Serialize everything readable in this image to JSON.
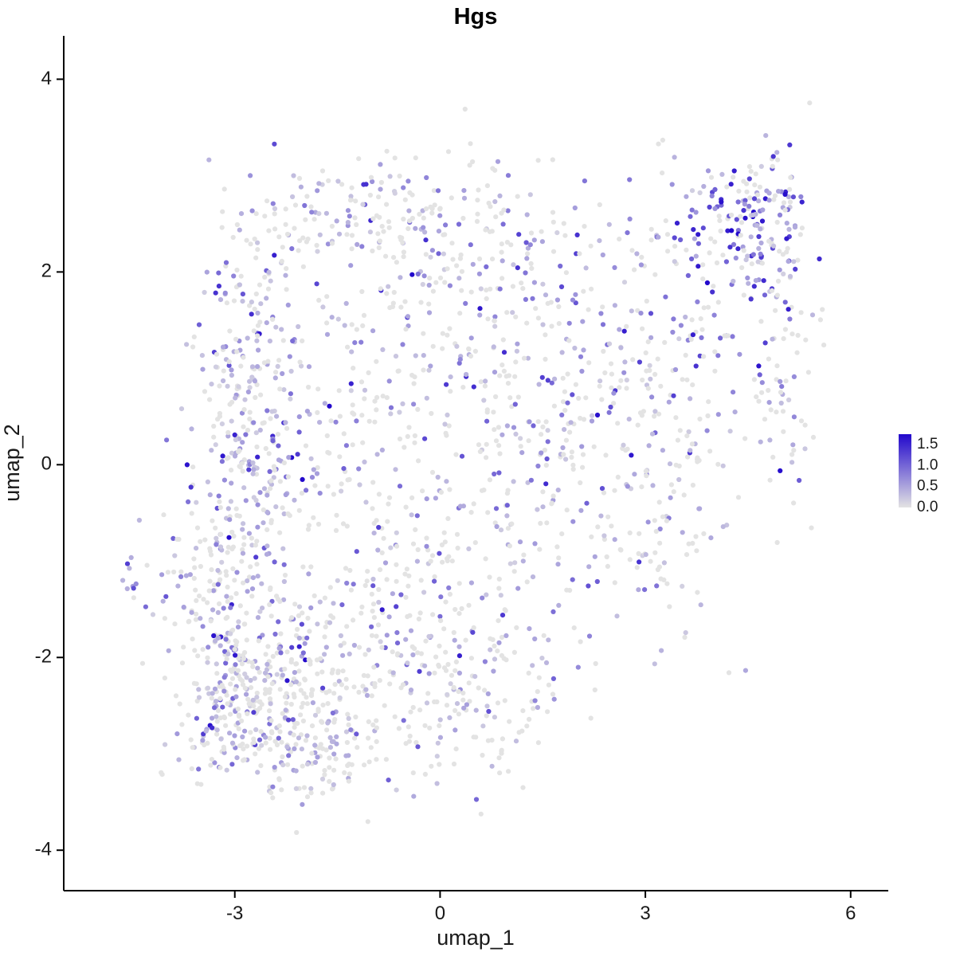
{
  "chart_data": {
    "type": "scatter",
    "title": "Hgs",
    "xlabel": "umap_1",
    "ylabel": "umap_2",
    "xlim": [
      -5.5,
      6.55
    ],
    "ylim": [
      -4.42,
      4.45
    ],
    "x_ticks": [
      -3,
      0,
      3,
      6
    ],
    "y_ticks": [
      -4,
      -2,
      0,
      2,
      4
    ],
    "grid": false,
    "point_radius": 3.1,
    "seed": 42,
    "legend": {
      "position": "right",
      "values": [
        1.5,
        1.0,
        0.5,
        0.0
      ],
      "labels": [
        "1.5",
        "1.0",
        "0.5",
        "0.0"
      ],
      "max": 1.75,
      "color_low": "#E3E3E3",
      "color_high": "#2208CC"
    },
    "clusters": [
      {
        "name": "bottom-left-core",
        "cx": -2.7,
        "cy": -2.35,
        "sx": 0.62,
        "sy": 0.48,
        "n": 380,
        "expr": [
          0.6,
          0.28,
          0.09
        ]
      },
      {
        "name": "bottom-left-south",
        "cx": -2.05,
        "cy": -3.0,
        "sx": 0.5,
        "sy": 0.26,
        "n": 90,
        "expr": [
          0.65,
          0.25,
          0.08
        ]
      },
      {
        "name": "left-band",
        "cx": -2.75,
        "cy": 0.55,
        "sx": 0.42,
        "sy": 1.05,
        "n": 320,
        "expr": [
          0.45,
          0.32,
          0.17
        ]
      },
      {
        "name": "left-lower",
        "cx": -3.35,
        "cy": -1.3,
        "sx": 0.4,
        "sy": 0.5,
        "n": 110,
        "expr": [
          0.55,
          0.3,
          0.11
        ]
      },
      {
        "name": "center-low",
        "cx": -0.7,
        "cy": -1.55,
        "sx": 0.95,
        "sy": 0.75,
        "n": 240,
        "expr": [
          0.62,
          0.26,
          0.09
        ]
      },
      {
        "name": "center-up",
        "cx": -0.6,
        "cy": 0.75,
        "sx": 1.0,
        "sy": 0.9,
        "n": 240,
        "expr": [
          0.55,
          0.28,
          0.12
        ]
      },
      {
        "name": "bottom-middle",
        "cx": 0.45,
        "cy": -2.45,
        "sx": 0.8,
        "sy": 0.45,
        "n": 140,
        "expr": [
          0.62,
          0.27,
          0.08
        ]
      },
      {
        "name": "top-band",
        "cx": -0.9,
        "cy": 2.5,
        "sx": 0.95,
        "sy": 0.34,
        "n": 150,
        "expr": [
          0.55,
          0.28,
          0.12
        ]
      },
      {
        "name": "center-right",
        "cx": 1.35,
        "cy": 0.45,
        "sx": 0.85,
        "sy": 1.1,
        "n": 210,
        "expr": [
          0.55,
          0.27,
          0.13
        ]
      },
      {
        "name": "top-center-right",
        "cx": 0.95,
        "cy": 2.15,
        "sx": 0.7,
        "sy": 0.5,
        "n": 90,
        "expr": [
          0.55,
          0.28,
          0.12
        ]
      },
      {
        "name": "right-mid",
        "cx": 3.3,
        "cy": 1.05,
        "sx": 0.85,
        "sy": 0.95,
        "n": 230,
        "expr": [
          0.52,
          0.27,
          0.14
        ]
      },
      {
        "name": "right-lower-tail",
        "cx": 3.0,
        "cy": -0.85,
        "sx": 0.55,
        "sy": 0.5,
        "n": 70,
        "expr": [
          0.6,
          0.25,
          0.1
        ]
      },
      {
        "name": "top-right-dense",
        "cx": 4.6,
        "cy": 2.45,
        "sx": 0.45,
        "sy": 0.38,
        "n": 170,
        "expr": [
          0.3,
          0.25,
          0.2
        ]
      },
      {
        "name": "right-edge",
        "cx": 5.0,
        "cy": 0.9,
        "sx": 0.3,
        "sy": 0.8,
        "n": 60,
        "expr": [
          0.55,
          0.25,
          0.12
        ]
      },
      {
        "name": "isolated-left",
        "cx": -4.55,
        "cy": -1.2,
        "sx": 0.1,
        "sy": 0.13,
        "n": 9,
        "expr": [
          0.35,
          0.35,
          0.2
        ]
      }
    ],
    "expr_value_ranges": {
      "zero": [
        0,
        0
      ],
      "low": [
        0.15,
        0.55
      ],
      "mid": [
        0.55,
        1.05
      ],
      "high": [
        1.05,
        1.75
      ]
    }
  }
}
